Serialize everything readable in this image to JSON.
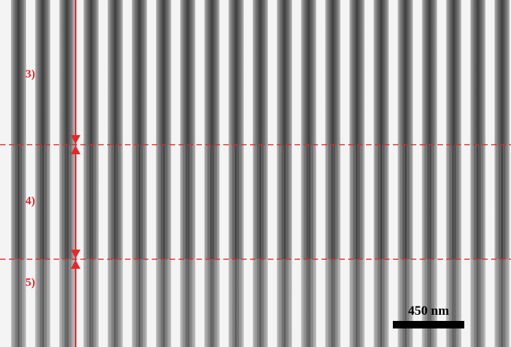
{
  "regions": [
    {
      "label": "3)"
    },
    {
      "label": "4)"
    },
    {
      "label": "5)"
    }
  ],
  "scale_bar": {
    "label": "450 nm"
  }
}
